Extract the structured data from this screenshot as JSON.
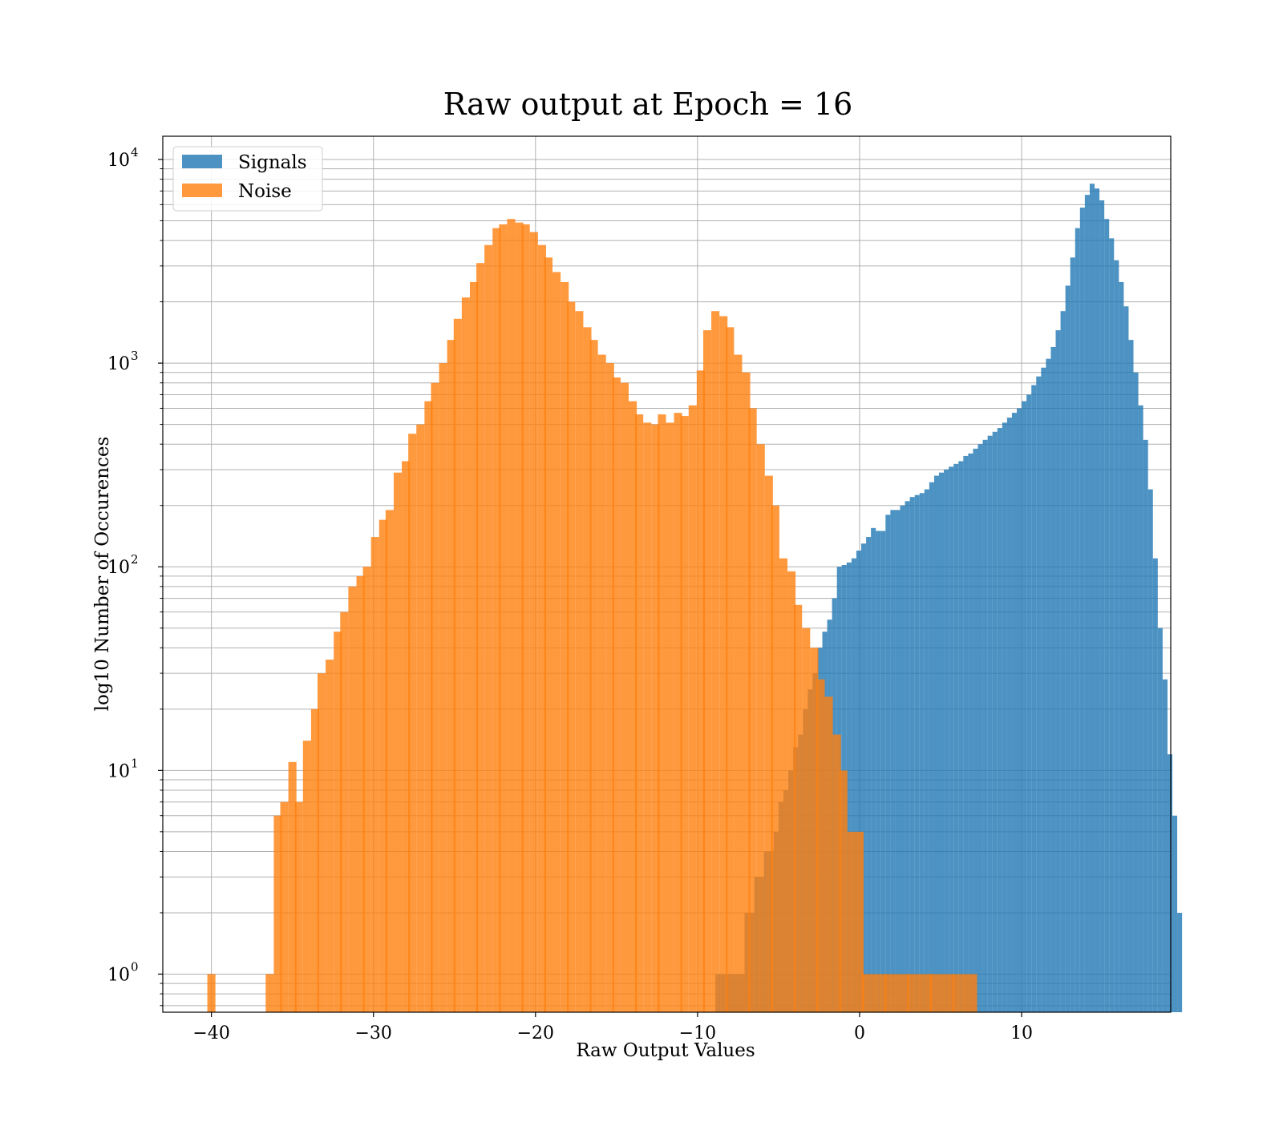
{
  "chart_data": {
    "type": "bar",
    "title": "Raw output at Epoch = 16",
    "xlabel": "Raw Output Values",
    "ylabel": "log10 Number of Occurences",
    "xlim": [
      -43,
      19.2
    ],
    "ylim": [
      0.65,
      13000
    ],
    "yscale": "log",
    "grid": true,
    "legend_position": "top-left",
    "xticks": [
      -40,
      -30,
      -20,
      -10,
      0,
      10
    ],
    "xtick_labels": [
      "−40",
      "−30",
      "−20",
      "−10",
      "0",
      "10"
    ],
    "yticks": [
      1,
      10,
      100,
      1000,
      10000
    ],
    "ytick_labels": [
      "10",
      "10",
      "10",
      "10",
      "10"
    ],
    "ytick_exponents": [
      "0",
      "1",
      "2",
      "3",
      "4"
    ],
    "colors": {
      "Signals": "#1f77b4",
      "Noise": "#ff7f0e"
    },
    "series": [
      {
        "name": "Signals",
        "color": "#1f77b4",
        "alpha": 0.8,
        "bin_start": -8.9,
        "bin_width": 0.3,
        "counts": [
          1,
          1,
          1,
          1,
          1,
          1,
          2,
          2,
          3,
          3,
          4,
          4,
          5,
          7,
          8,
          10,
          13,
          15,
          20,
          25,
          30,
          40,
          48,
          55,
          70,
          100,
          102,
          105,
          110,
          120,
          130,
          140,
          155,
          150,
          150,
          180,
          190,
          190,
          200,
          210,
          220,
          225,
          230,
          240,
          260,
          280,
          290,
          300,
          310,
          320,
          330,
          350,
          360,
          380,
          400,
          420,
          440,
          460,
          480,
          510,
          540,
          570,
          600,
          650,
          700,
          780,
          860,
          950,
          1050,
          1200,
          1450,
          1800,
          2400,
          3300,
          4600,
          5800,
          6700,
          7600,
          7200,
          6300,
          5100,
          4100,
          3200,
          2500,
          1900,
          1300,
          900,
          620,
          420,
          240,
          110,
          50,
          28,
          12,
          6,
          2
        ]
      },
      {
        "name": "Noise",
        "color": "#ff7f0e",
        "alpha": 0.8,
        "x": [
          -40.0,
          -36.4,
          -35.9,
          -35.5,
          -35.0,
          -34.6,
          -34.1,
          -33.6,
          -33.2,
          -32.7,
          -32.2,
          -31.8,
          -31.3,
          -30.8,
          -30.4,
          -29.9,
          -29.4,
          -29.0,
          -28.5,
          -28.0,
          -27.6,
          -27.1,
          -26.6,
          -26.2,
          -25.7,
          -25.2,
          -24.8,
          -24.3,
          -23.8,
          -23.4,
          -22.9,
          -22.4,
          -22.0,
          -21.5,
          -21.0,
          -20.6,
          -20.1,
          -19.6,
          -19.2,
          -18.7,
          -18.2,
          -17.8,
          -17.3,
          -16.8,
          -16.4,
          -15.9,
          -15.4,
          -15.0,
          -14.5,
          -14.0,
          -13.6,
          -13.1,
          -12.6,
          -12.2,
          -11.7,
          -11.2,
          -10.8,
          -10.3,
          -9.8,
          -9.4,
          -8.9,
          -8.4,
          -8.0,
          -7.5,
          -7.0,
          -6.6,
          -6.1,
          -5.6,
          -5.2,
          -4.7,
          -4.2,
          -3.8,
          -3.3,
          -2.8,
          -2.4,
          -1.9,
          -1.4,
          -1.0,
          -0.5,
          0.0,
          0.4,
          0.9,
          1.4,
          1.8,
          2.3,
          2.8,
          3.2,
          3.7,
          4.2,
          4.6,
          5.1,
          5.6,
          6.0,
          6.5,
          7.0
        ],
        "values": [
          1,
          1,
          6,
          7,
          11,
          7,
          14,
          20,
          30,
          35,
          48,
          60,
          80,
          90,
          100,
          140,
          170,
          190,
          290,
          330,
          450,
          500,
          650,
          800,
          1000,
          1300,
          1650,
          2100,
          2500,
          3100,
          3800,
          4600,
          4800,
          5100,
          4900,
          4800,
          4400,
          3800,
          3300,
          2800,
          2500,
          2000,
          1800,
          1500,
          1300,
          1100,
          1000,
          850,
          800,
          650,
          560,
          510,
          500,
          560,
          510,
          570,
          550,
          620,
          920,
          1450,
          1800,
          1700,
          1500,
          1100,
          900,
          600,
          400,
          280,
          200,
          110,
          95,
          65,
          50,
          40,
          28,
          23,
          15,
          10,
          5,
          5,
          1,
          1,
          1,
          1,
          1,
          1,
          1,
          1,
          1,
          1,
          1,
          1,
          1,
          1,
          1
        ]
      }
    ]
  }
}
